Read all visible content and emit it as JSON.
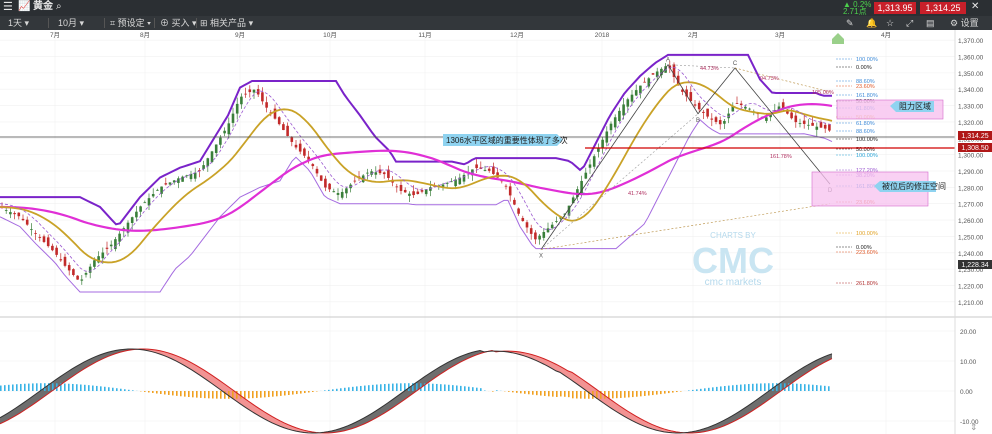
{
  "header": {
    "menu_icon": "hamburger-menu-icon",
    "chart_icon": "chart-icon",
    "title": "黄金",
    "search_icon": "search-icon",
    "change_pct": "▲ 0.2%",
    "change_abs": "2.71点",
    "sell_price": "1,313.95",
    "buy_price": "1,314.25",
    "pen_icon": "pen-icon",
    "bell_icon": "bell-icon",
    "star_icon": "star-icon"
  },
  "toolbar": {
    "timeframe": "1天",
    "range": "10月",
    "order_button": "预设定",
    "buy_button": "买入",
    "related_button": "相关产品",
    "settings_button": "设置"
  },
  "chart_data": {
    "type": "line",
    "instrument": "黄金",
    "x_labels": [
      "7月",
      "8月",
      "9月",
      "10月",
      "11月",
      "12月",
      "2018",
      "2月",
      "3月",
      "4月"
    ],
    "y_ticks": [
      "1,370.00",
      "1,360.00",
      "1,350.00",
      "1,340.00",
      "1,330.00",
      "1,320.00",
      "1,310.00",
      "1,300.00",
      "1,290.00",
      "1,280.00",
      "1,270.00",
      "1,260.00",
      "1,250.00",
      "1,240.00",
      "1,230.00",
      "1,220.00",
      "1,210.00"
    ],
    "ylim": [
      1205,
      1375
    ],
    "price_labels": {
      "current": "1,314.25",
      "level": "1,308.50",
      "low": "1,228.34"
    },
    "annotations": {
      "level_line": "1306水平区域的重要性体现了多次",
      "resistance": "阻力区域",
      "support": "被位后的修正空间"
    },
    "fib_levels": [
      "100.00%",
      "0.00%",
      "88.60%",
      "23.60%",
      "161.80%",
      "50.00%",
      "61.80%",
      "50.00%",
      "61.80%",
      "88.60%",
      "100.00%",
      "50.00%",
      "100.00%",
      "127.20%",
      "38.20%",
      "161.80%",
      "23.60%",
      "100.00%",
      "0.00%",
      "223.60%",
      "261.80%"
    ],
    "fib_other": [
      "44.73%",
      "94.73%",
      "105.06%",
      "161.78%",
      "41.74%"
    ],
    "pattern_labels": [
      "X",
      "A",
      "B",
      "C",
      "D"
    ],
    "watermark": {
      "line1": "CHARTS BY",
      "line2": "CMC",
      "line3": "cmc markets"
    },
    "macd_ticks": [
      "20.00",
      "10.00",
      "0.00",
      "-10.00"
    ]
  }
}
